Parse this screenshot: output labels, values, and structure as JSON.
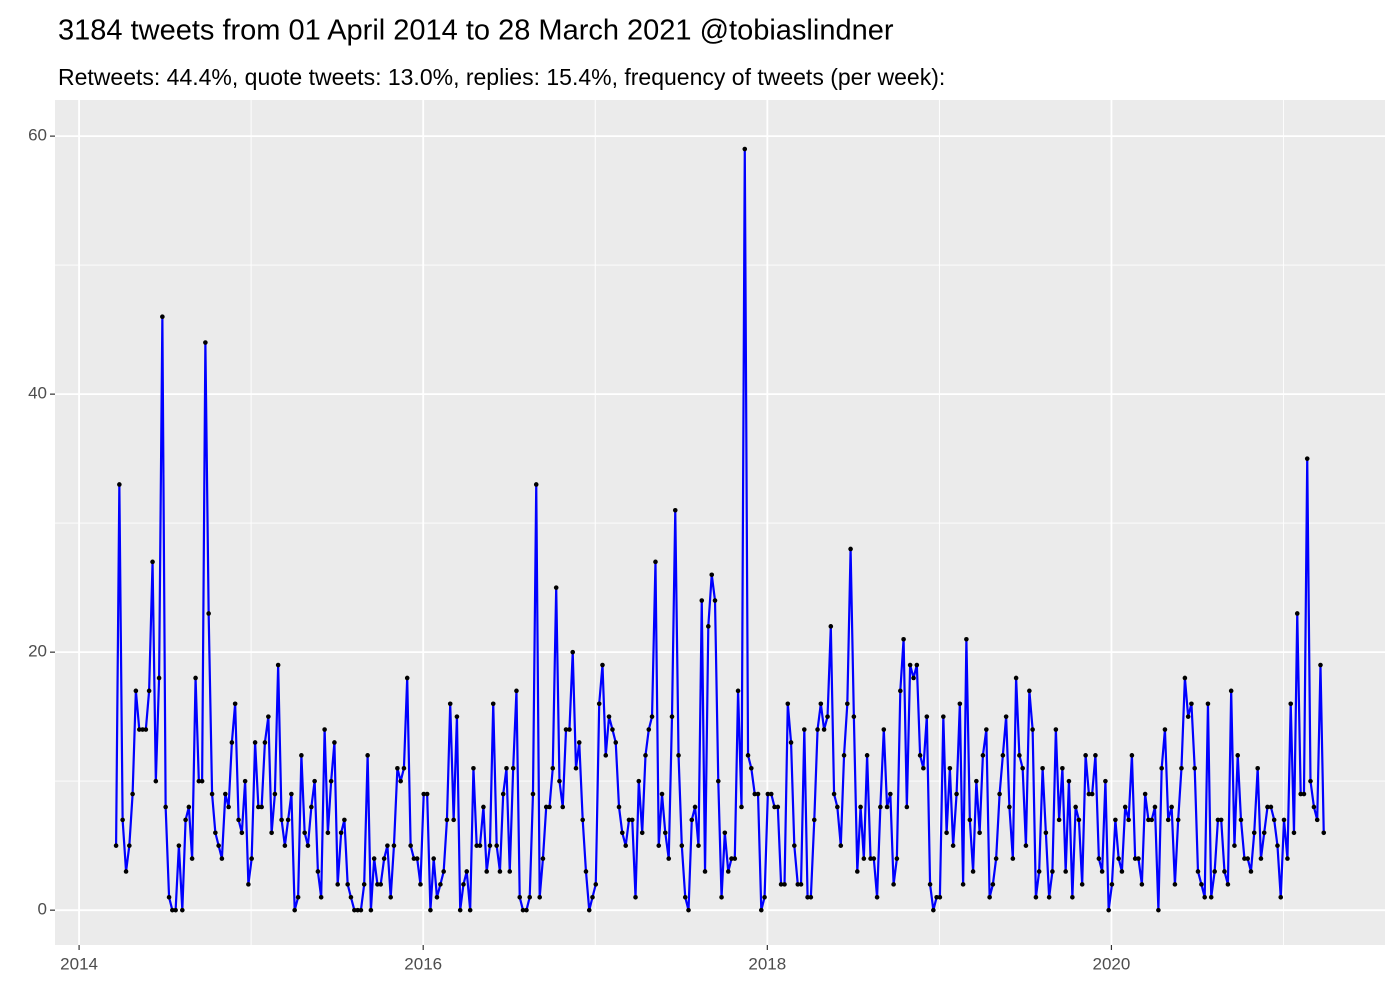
{
  "chart_data": {
    "type": "line",
    "title": "3184 tweets from 01 April 2014 to 28 March 2021 @tobiaslindner",
    "subtitle": "Retweets: 44.4%, quote tweets: 13.0%, replies: 15.4%, frequency of tweets (per week):",
    "xlim": [
      2013.86,
      2021.59
    ],
    "xticks": [
      2014,
      2016,
      2018,
      2020
    ],
    "ylim": [
      -2.7,
      62.8
    ],
    "yticks": [
      0,
      20,
      40,
      60
    ],
    "grid": true,
    "x": [
      2014.215,
      2014.234,
      2014.253,
      2014.273,
      2014.292,
      2014.311,
      2014.33,
      2014.35,
      2014.369,
      2014.388,
      2014.407,
      2014.427,
      2014.446,
      2014.465,
      2014.484,
      2014.503,
      2014.523,
      2014.542,
      2014.561,
      2014.58,
      2014.6,
      2014.619,
      2014.638,
      2014.657,
      2014.677,
      2014.696,
      2014.715,
      2014.734,
      2014.753,
      2014.773,
      2014.792,
      2014.811,
      2014.83,
      2014.85,
      2014.869,
      2014.888,
      2014.907,
      2014.927,
      2014.946,
      2014.965,
      2014.984,
      2015.003,
      2015.023,
      2015.042,
      2015.061,
      2015.08,
      2015.1,
      2015.119,
      2015.138,
      2015.157,
      2015.177,
      2015.196,
      2015.215,
      2015.234,
      2015.253,
      2015.273,
      2015.292,
      2015.311,
      2015.33,
      2015.35,
      2015.369,
      2015.388,
      2015.407,
      2015.427,
      2015.446,
      2015.465,
      2015.484,
      2015.503,
      2015.523,
      2015.542,
      2015.561,
      2015.58,
      2015.6,
      2015.619,
      2015.638,
      2015.657,
      2015.677,
      2015.696,
      2015.715,
      2015.734,
      2015.753,
      2015.773,
      2015.792,
      2015.811,
      2015.83,
      2015.85,
      2015.869,
      2015.888,
      2015.907,
      2015.927,
      2015.946,
      2015.965,
      2015.984,
      2016.003,
      2016.023,
      2016.042,
      2016.061,
      2016.08,
      2016.1,
      2016.119,
      2016.138,
      2016.157,
      2016.177,
      2016.196,
      2016.215,
      2016.234,
      2016.253,
      2016.273,
      2016.292,
      2016.311,
      2016.33,
      2016.35,
      2016.369,
      2016.388,
      2016.407,
      2016.427,
      2016.446,
      2016.465,
      2016.484,
      2016.503,
      2016.523,
      2016.542,
      2016.561,
      2016.58,
      2016.6,
      2016.619,
      2016.638,
      2016.657,
      2016.677,
      2016.696,
      2016.715,
      2016.734,
      2016.753,
      2016.773,
      2016.792,
      2016.811,
      2016.83,
      2016.85,
      2016.869,
      2016.888,
      2016.907,
      2016.927,
      2016.946,
      2016.965,
      2016.984,
      2017.003,
      2017.023,
      2017.042,
      2017.061,
      2017.08,
      2017.1,
      2017.119,
      2017.138,
      2017.157,
      2017.177,
      2017.196,
      2017.215,
      2017.234,
      2017.253,
      2017.273,
      2017.292,
      2017.311,
      2017.33,
      2017.35,
      2017.369,
      2017.388,
      2017.407,
      2017.427,
      2017.446,
      2017.465,
      2017.484,
      2017.503,
      2017.523,
      2017.542,
      2017.561,
      2017.58,
      2017.6,
      2017.619,
      2017.638,
      2017.657,
      2017.677,
      2017.696,
      2017.715,
      2017.734,
      2017.753,
      2017.773,
      2017.792,
      2017.811,
      2017.83,
      2017.85,
      2017.869,
      2017.888,
      2017.907,
      2017.927,
      2017.946,
      2017.965,
      2017.984,
      2018.003,
      2018.023,
      2018.042,
      2018.061,
      2018.08,
      2018.1,
      2018.119,
      2018.138,
      2018.157,
      2018.177,
      2018.196,
      2018.215,
      2018.234,
      2018.253,
      2018.273,
      2018.292,
      2018.311,
      2018.33,
      2018.35,
      2018.369,
      2018.388,
      2018.407,
      2018.427,
      2018.446,
      2018.465,
      2018.484,
      2018.503,
      2018.523,
      2018.542,
      2018.561,
      2018.58,
      2018.6,
      2018.619,
      2018.638,
      2018.657,
      2018.677,
      2018.696,
      2018.715,
      2018.734,
      2018.753,
      2018.773,
      2018.792,
      2018.811,
      2018.83,
      2018.85,
      2018.869,
      2018.888,
      2018.907,
      2018.927,
      2018.946,
      2018.965,
      2018.984,
      2019.003,
      2019.023,
      2019.042,
      2019.061,
      2019.08,
      2019.1,
      2019.119,
      2019.138,
      2019.157,
      2019.177,
      2019.196,
      2019.215,
      2019.234,
      2019.253,
      2019.273,
      2019.292,
      2019.311,
      2019.33,
      2019.35,
      2019.369,
      2019.388,
      2019.407,
      2019.427,
      2019.446,
      2019.465,
      2019.484,
      2019.503,
      2019.523,
      2019.542,
      2019.561,
      2019.58,
      2019.6,
      2019.619,
      2019.638,
      2019.657,
      2019.677,
      2019.696,
      2019.715,
      2019.734,
      2019.753,
      2019.773,
      2019.792,
      2019.811,
      2019.83,
      2019.85,
      2019.869,
      2019.888,
      2019.907,
      2019.927,
      2019.946,
      2019.965,
      2019.984,
      2020.003,
      2020.023,
      2020.042,
      2020.061,
      2020.08,
      2020.1,
      2020.119,
      2020.138,
      2020.157,
      2020.177,
      2020.196,
      2020.215,
      2020.234,
      2020.253,
      2020.273,
      2020.292,
      2020.311,
      2020.33,
      2020.35,
      2020.369,
      2020.388,
      2020.407,
      2020.427,
      2020.446,
      2020.465,
      2020.484,
      2020.503,
      2020.523,
      2020.542,
      2020.561,
      2020.58,
      2020.6,
      2020.619,
      2020.638,
      2020.657,
      2020.677,
      2020.696,
      2020.715,
      2020.734,
      2020.753,
      2020.773,
      2020.792,
      2020.811,
      2020.83,
      2020.85,
      2020.869,
      2020.888,
      2020.907,
      2020.927,
      2020.946,
      2020.965,
      2020.984,
      2021.003,
      2021.023,
      2021.042,
      2021.061,
      2021.08,
      2021.1,
      2021.119,
      2021.138,
      2021.157,
      2021.177,
      2021.196,
      2021.215,
      2021.234
    ],
    "series": [
      {
        "color": "blue",
        "point_color": "black",
        "values": [
          5,
          33,
          7,
          3,
          5,
          9,
          17,
          14,
          14,
          14,
          17,
          27,
          10,
          18,
          46,
          8,
          1,
          0,
          0,
          5,
          0,
          7,
          8,
          4,
          18,
          10,
          10,
          44,
          23,
          9,
          6,
          5,
          4,
          9,
          8,
          13,
          16,
          7,
          6,
          10,
          2,
          4,
          13,
          8,
          8,
          13,
          15,
          6,
          9,
          19,
          7,
          5,
          7,
          9,
          0,
          1,
          12,
          6,
          5,
          8,
          10,
          3,
          1,
          14,
          6,
          10,
          13,
          2,
          6,
          7,
          2,
          1,
          0,
          0,
          0,
          2,
          12,
          0,
          4,
          2,
          2,
          4,
          5,
          1,
          5,
          11,
          10,
          11,
          18,
          5,
          4,
          4,
          2,
          9,
          9,
          0,
          4,
          1,
          2,
          3,
          7,
          16,
          7,
          15,
          0,
          2,
          3,
          0,
          11,
          5,
          5,
          8,
          3,
          5,
          16,
          5,
          3,
          9,
          11,
          3,
          11,
          17,
          1,
          0,
          0,
          1,
          9,
          33,
          1,
          4,
          8,
          8,
          11,
          25,
          10,
          8,
          14,
          14,
          20,
          11,
          13,
          7,
          3,
          0,
          1,
          2,
          16,
          19,
          12,
          15,
          14,
          13,
          8,
          6,
          5,
          7,
          7,
          1,
          10,
          6,
          12,
          14,
          15,
          27,
          5,
          9,
          6,
          4,
          15,
          31,
          12,
          5,
          1,
          0,
          7,
          8,
          5,
          24,
          3,
          22,
          26,
          24,
          10,
          1,
          6,
          3,
          4,
          4,
          17,
          8,
          59,
          12,
          11,
          9,
          9,
          0,
          1,
          9,
          9,
          8,
          8,
          2,
          2,
          16,
          13,
          5,
          2,
          2,
          14,
          1,
          1,
          7,
          14,
          16,
          14,
          15,
          22,
          9,
          8,
          5,
          12,
          16,
          28,
          15,
          3,
          8,
          4,
          12,
          4,
          4,
          1,
          8,
          14,
          8,
          9,
          2,
          4,
          17,
          21,
          8,
          19,
          18,
          19,
          12,
          11,
          15,
          2,
          0,
          1,
          1,
          15,
          6,
          11,
          5,
          9,
          16,
          2,
          21,
          7,
          3,
          10,
          6,
          12,
          14,
          1,
          2,
          4,
          9,
          12,
          15,
          8,
          4,
          18,
          12,
          11,
          5,
          17,
          14,
          1,
          3,
          11,
          6,
          1,
          3,
          14,
          7,
          11,
          3,
          10,
          1,
          8,
          7,
          2,
          12,
          9,
          9,
          12,
          4,
          3,
          10,
          0,
          2,
          7,
          4,
          3,
          8,
          7,
          12,
          4,
          4,
          2,
          9,
          7,
          7,
          8,
          0,
          11,
          14,
          7,
          8,
          2,
          7,
          11,
          18,
          15,
          16,
          11,
          3,
          2,
          1,
          16,
          1,
          3,
          7,
          7,
          3,
          2,
          17,
          5,
          12,
          7,
          4,
          4,
          3,
          6,
          11,
          4,
          6,
          8,
          8,
          7,
          5,
          1,
          7,
          4,
          16,
          6,
          23,
          9,
          9,
          35,
          10,
          8,
          7,
          19,
          6
        ]
      }
    ]
  }
}
